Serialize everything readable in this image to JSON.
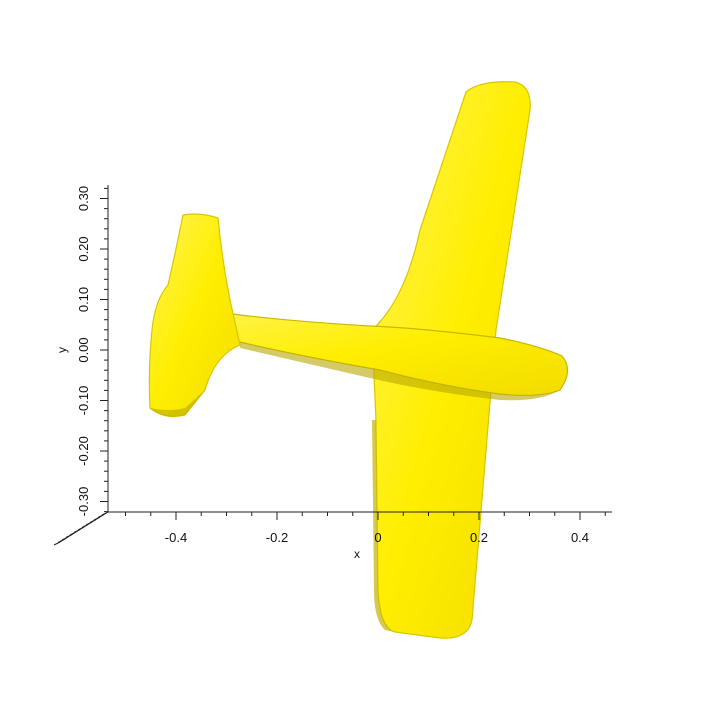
{
  "scene": {
    "model": "airplane",
    "surface_color": "#ffee00",
    "shadow_color": "#c9b800",
    "highlight_color": "#fff766"
  },
  "x_axis": {
    "title": "x",
    "ticks": [
      {
        "value": -0.4,
        "label": "-0.4"
      },
      {
        "value": -0.2,
        "label": "-0.2"
      },
      {
        "value": 0.0,
        "label": "0"
      },
      {
        "value": 0.2,
        "label": "0.2"
      },
      {
        "value": 0.4,
        "label": "0.4"
      }
    ]
  },
  "y_axis": {
    "title": "y",
    "ticks": [
      {
        "value": -0.3,
        "label": "-0.30"
      },
      {
        "value": -0.2,
        "label": "-0.20"
      },
      {
        "value": -0.1,
        "label": "-0.10"
      },
      {
        "value": 0.0,
        "label": "0.00"
      },
      {
        "value": 0.1,
        "label": "0.10"
      },
      {
        "value": 0.2,
        "label": "0.20"
      },
      {
        "value": 0.3,
        "label": "0.30"
      }
    ]
  }
}
